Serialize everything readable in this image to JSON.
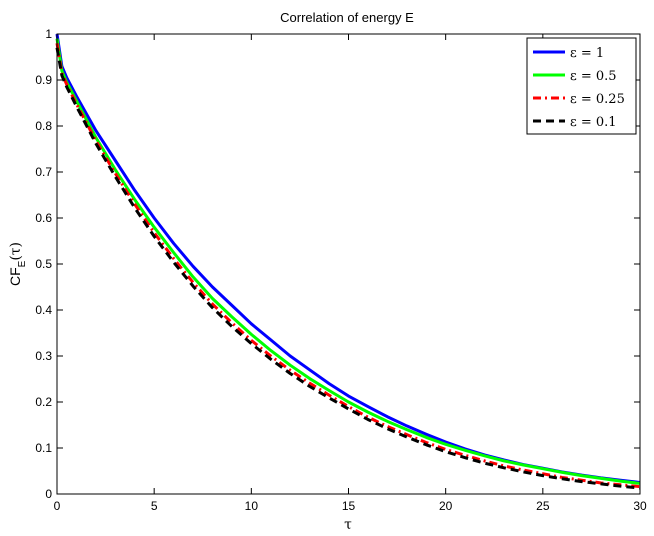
{
  "chart_data": {
    "type": "line",
    "title": "Correlation of energy E",
    "xlabel": "τ",
    "ylabel": "CF_E(τ)",
    "ylabel_main": "CF",
    "ylabel_sub": "E",
    "ylabel_arg": "(τ)",
    "xlim": [
      0,
      30
    ],
    "ylim": [
      0,
      1
    ],
    "x_ticks": [
      0,
      5,
      10,
      15,
      20,
      25,
      30
    ],
    "y_ticks": [
      0,
      0.1,
      0.2,
      0.3,
      0.4,
      0.5,
      0.6,
      0.7,
      0.8,
      0.9,
      1
    ],
    "x_tick_labels": [
      "0",
      "5",
      "10",
      "15",
      "20",
      "25",
      "30"
    ],
    "y_tick_labels": [
      "0",
      "0.1",
      "0.2",
      "0.3",
      "0.4",
      "0.5",
      "0.6",
      "0.7",
      "0.8",
      "0.9",
      "1"
    ],
    "grid": false,
    "legend_position": "top-right",
    "x": [
      0,
      0.25,
      0.5,
      1,
      2,
      3,
      4,
      5,
      6,
      7,
      8,
      9,
      10,
      11,
      12,
      13,
      14,
      15,
      16,
      17,
      18,
      19,
      20,
      21,
      22,
      23,
      24,
      25,
      26,
      27,
      28,
      29,
      30
    ],
    "series": [
      {
        "name": "ε = 1",
        "color": "#0000ff",
        "dash": "solid",
        "values": [
          1.0,
          0.93,
          0.905,
          0.865,
          0.79,
          0.725,
          0.66,
          0.6,
          0.545,
          0.495,
          0.45,
          0.41,
          0.37,
          0.335,
          0.3,
          0.27,
          0.24,
          0.213,
          0.19,
          0.168,
          0.148,
          0.13,
          0.113,
          0.098,
          0.085,
          0.074,
          0.064,
          0.056,
          0.048,
          0.041,
          0.035,
          0.03,
          0.025
        ]
      },
      {
        "name": "ε = 0.5",
        "color": "#00ff00",
        "dash": "solid",
        "values": [
          0.99,
          0.92,
          0.895,
          0.855,
          0.775,
          0.705,
          0.64,
          0.58,
          0.525,
          0.472,
          0.425,
          0.385,
          0.347,
          0.312,
          0.28,
          0.251,
          0.225,
          0.2,
          0.178,
          0.158,
          0.14,
          0.123,
          0.108,
          0.095,
          0.083,
          0.072,
          0.063,
          0.055,
          0.047,
          0.04,
          0.034,
          0.028,
          0.023
        ]
      },
      {
        "name": "ε = 0.25",
        "color": "#ff0000",
        "dash": "dashdot",
        "values": [
          0.98,
          0.915,
          0.89,
          0.848,
          0.768,
          0.697,
          0.63,
          0.568,
          0.512,
          0.46,
          0.413,
          0.372,
          0.334,
          0.3,
          0.269,
          0.241,
          0.215,
          0.19,
          0.167,
          0.147,
          0.129,
          0.112,
          0.097,
          0.084,
          0.072,
          0.061,
          0.052,
          0.044,
          0.036,
          0.03,
          0.024,
          0.02,
          0.016
        ]
      },
      {
        "name": "ε = 0.1",
        "color": "#000000",
        "dash": "dashed",
        "values": [
          0.97,
          0.91,
          0.885,
          0.843,
          0.762,
          0.69,
          0.622,
          0.56,
          0.504,
          0.452,
          0.405,
          0.364,
          0.327,
          0.293,
          0.262,
          0.234,
          0.209,
          0.185,
          0.162,
          0.142,
          0.124,
          0.107,
          0.092,
          0.079,
          0.067,
          0.057,
          0.048,
          0.04,
          0.033,
          0.027,
          0.022,
          0.017,
          0.013
        ]
      }
    ]
  }
}
